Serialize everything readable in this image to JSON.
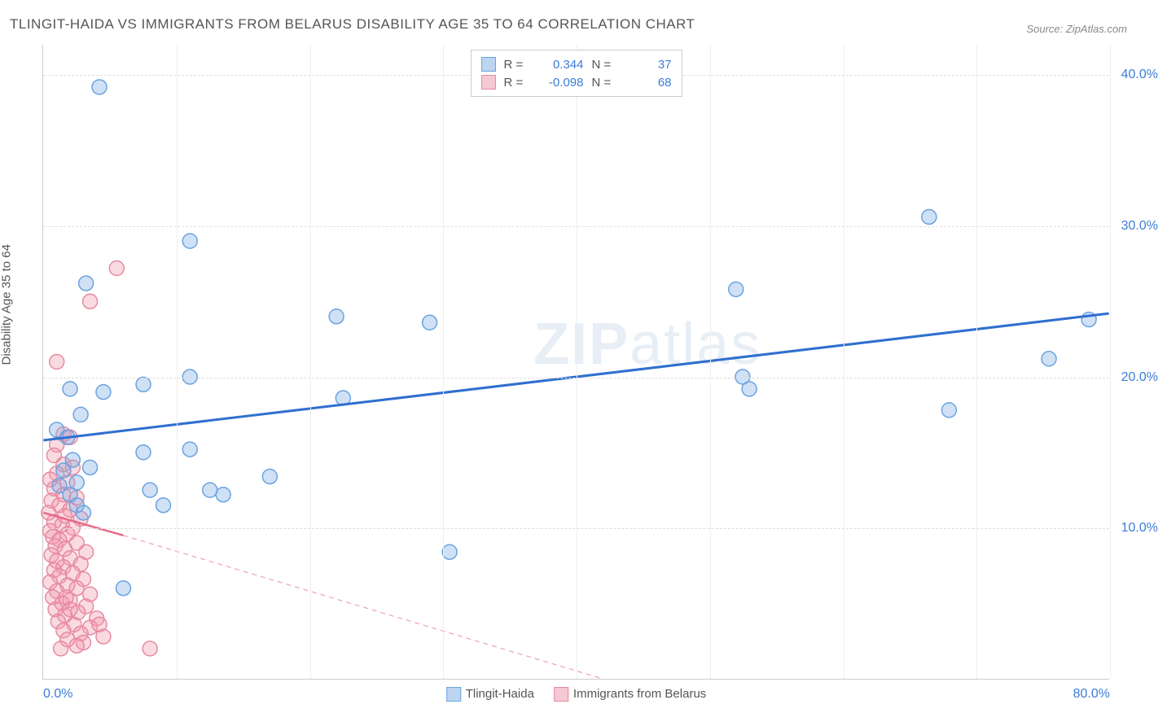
{
  "title": "TLINGIT-HAIDA VS IMMIGRANTS FROM BELARUS DISABILITY AGE 35 TO 64 CORRELATION CHART",
  "source": "Source: ZipAtlas.com",
  "y_axis_label": "Disability Age 35 to 64",
  "watermark_bold": "ZIP",
  "watermark_rest": "atlas",
  "chart": {
    "type": "scatter",
    "xlim": [
      0,
      80
    ],
    "ylim": [
      0,
      42
    ],
    "x_ticks": [
      {
        "pos": 0,
        "label": "0.0%"
      },
      {
        "pos": 80,
        "label": "80.0%"
      }
    ],
    "y_ticks": [
      {
        "pos": 10,
        "label": "10.0%"
      },
      {
        "pos": 20,
        "label": "20.0%"
      },
      {
        "pos": 30,
        "label": "30.0%"
      },
      {
        "pos": 40,
        "label": "40.0%"
      }
    ],
    "v_grid": [
      10,
      20,
      30,
      40,
      50,
      60,
      70,
      80
    ],
    "h_grid": [
      10,
      20,
      30,
      40
    ],
    "marker_radius": 9,
    "marker_stroke_width": 1.5,
    "background_color": "#ffffff",
    "grid_color": "#dddddd"
  },
  "series": [
    {
      "name": "Tlingit-Haida",
      "color_fill": "rgba(120, 170, 230, 0.35)",
      "color_stroke": "#6aa3e0",
      "swatch_fill": "#bcd5f0",
      "swatch_border": "#6aa3e0",
      "r_value": "0.344",
      "n_value": "37",
      "trend": {
        "x1": 0,
        "y1": 15.8,
        "x2": 80,
        "y2": 24.2,
        "color": "#2f6fd0",
        "width": 3,
        "dash": "none"
      },
      "points": [
        [
          4.2,
          39.2
        ],
        [
          66.5,
          30.6
        ],
        [
          11.0,
          29.0
        ],
        [
          3.2,
          26.2
        ],
        [
          52.0,
          25.8
        ],
        [
          22.0,
          24.0
        ],
        [
          29.0,
          23.6
        ],
        [
          78.5,
          23.8
        ],
        [
          75.5,
          21.2
        ],
        [
          52.5,
          20.0
        ],
        [
          68.0,
          17.8
        ],
        [
          7.5,
          19.5
        ],
        [
          11.0,
          20.0
        ],
        [
          4.5,
          19.0
        ],
        [
          2.0,
          19.2
        ],
        [
          22.5,
          18.6
        ],
        [
          53.0,
          19.2
        ],
        [
          11.0,
          15.2
        ],
        [
          7.5,
          15.0
        ],
        [
          3.5,
          14.0
        ],
        [
          12.5,
          12.5
        ],
        [
          13.5,
          12.2
        ],
        [
          17.0,
          13.4
        ],
        [
          8.0,
          12.5
        ],
        [
          2.5,
          13.0
        ],
        [
          2.0,
          12.2
        ],
        [
          30.5,
          8.4
        ],
        [
          6.0,
          6.0
        ],
        [
          2.5,
          11.5
        ],
        [
          1.5,
          13.8
        ],
        [
          1.0,
          16.5
        ],
        [
          3.0,
          11.0
        ],
        [
          2.2,
          14.5
        ],
        [
          1.8,
          16.0
        ],
        [
          2.8,
          17.5
        ],
        [
          9.0,
          11.5
        ],
        [
          1.2,
          12.8
        ]
      ]
    },
    {
      "name": "Immigrants from Belarus",
      "color_fill": "rgba(240, 150, 170, 0.35)",
      "color_stroke": "#e68aa0",
      "swatch_fill": "#f5c8d4",
      "swatch_border": "#e68aa0",
      "r_value": "-0.098",
      "n_value": "68",
      "trend": {
        "x1": 0,
        "y1": 11.0,
        "x2": 6,
        "y2": 9.5,
        "color": "#e56a8a",
        "width": 2.5,
        "dash": "none"
      },
      "trend_dashed": {
        "x1": 6,
        "y1": 9.5,
        "x2": 42,
        "y2": 0,
        "color": "#f0a0b5",
        "width": 1.2,
        "dash": "6,5"
      },
      "points": [
        [
          5.5,
          27.2
        ],
        [
          3.5,
          25.0
        ],
        [
          1.0,
          21.0
        ],
        [
          1.5,
          16.2
        ],
        [
          2.0,
          16.0
        ],
        [
          1.0,
          15.5
        ],
        [
          0.8,
          14.8
        ],
        [
          1.5,
          14.2
        ],
        [
          2.2,
          14.0
        ],
        [
          1.0,
          13.6
        ],
        [
          0.5,
          13.2
        ],
        [
          1.8,
          13.0
        ],
        [
          0.8,
          12.6
        ],
        [
          1.5,
          12.2
        ],
        [
          2.5,
          12.0
        ],
        [
          0.6,
          11.8
        ],
        [
          1.2,
          11.5
        ],
        [
          2.0,
          11.2
        ],
        [
          0.4,
          11.0
        ],
        [
          1.6,
          10.8
        ],
        [
          2.8,
          10.6
        ],
        [
          0.8,
          10.4
        ],
        [
          1.4,
          10.2
        ],
        [
          2.2,
          10.0
        ],
        [
          0.5,
          9.8
        ],
        [
          1.8,
          9.6
        ],
        [
          0.7,
          9.4
        ],
        [
          1.2,
          9.2
        ],
        [
          2.5,
          9.0
        ],
        [
          0.9,
          8.8
        ],
        [
          1.6,
          8.6
        ],
        [
          3.2,
          8.4
        ],
        [
          0.6,
          8.2
        ],
        [
          2.0,
          8.0
        ],
        [
          1.0,
          7.8
        ],
        [
          2.8,
          7.6
        ],
        [
          1.5,
          7.4
        ],
        [
          0.8,
          7.2
        ],
        [
          2.2,
          7.0
        ],
        [
          1.2,
          6.8
        ],
        [
          3.0,
          6.6
        ],
        [
          0.5,
          6.4
        ],
        [
          1.8,
          6.2
        ],
        [
          2.5,
          6.0
        ],
        [
          1.0,
          5.8
        ],
        [
          3.5,
          5.6
        ],
        [
          0.7,
          5.4
        ],
        [
          2.0,
          5.2
        ],
        [
          1.4,
          5.0
        ],
        [
          3.2,
          4.8
        ],
        [
          0.9,
          4.6
        ],
        [
          2.6,
          4.4
        ],
        [
          1.6,
          4.2
        ],
        [
          4.0,
          4.0
        ],
        [
          1.1,
          3.8
        ],
        [
          2.3,
          3.6
        ],
        [
          3.5,
          3.4
        ],
        [
          1.5,
          3.2
        ],
        [
          2.8,
          3.0
        ],
        [
          4.5,
          2.8
        ],
        [
          1.8,
          2.6
        ],
        [
          3.0,
          2.4
        ],
        [
          8.0,
          2.0
        ],
        [
          2.5,
          2.2
        ],
        [
          1.3,
          2.0
        ],
        [
          4.2,
          3.6
        ],
        [
          2.0,
          4.6
        ],
        [
          1.7,
          5.4
        ]
      ]
    }
  ],
  "legend_bottom": [
    {
      "label": "Tlingit-Haida",
      "fill": "#bcd5f0",
      "border": "#6aa3e0"
    },
    {
      "label": "Immigrants from Belarus",
      "fill": "#f5c8d4",
      "border": "#e68aa0"
    }
  ],
  "legend_top_cols": {
    "r_label": "R =",
    "n_label": "N ="
  }
}
